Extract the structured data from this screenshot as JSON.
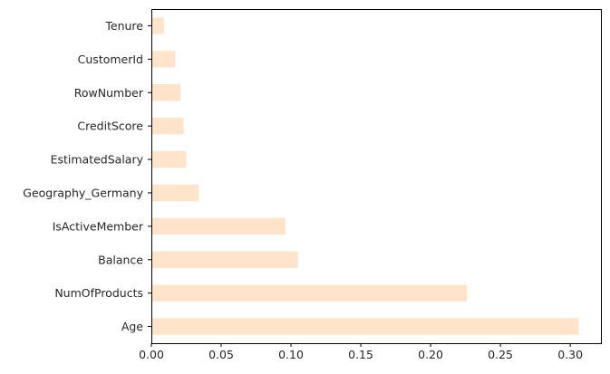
{
  "chart_data": {
    "type": "bar",
    "orientation": "horizontal",
    "categories": [
      "Tenure",
      "CustomerId",
      "RowNumber",
      "CreditScore",
      "EstimatedSalary",
      "Geography_Germany",
      "IsActiveMember",
      "Balance",
      "NumOfProducts",
      "Age"
    ],
    "values": [
      0.009,
      0.017,
      0.021,
      0.023,
      0.025,
      0.034,
      0.096,
      0.105,
      0.226,
      0.306
    ],
    "xlim": [
      0,
      0.322
    ],
    "xticks": [
      0.0,
      0.05,
      0.1,
      0.15,
      0.2,
      0.25,
      0.3
    ],
    "xtick_labels": [
      "0.00",
      "0.05",
      "0.10",
      "0.15",
      "0.20",
      "0.25",
      "0.30"
    ],
    "title": "",
    "xlabel": "",
    "ylabel": "",
    "grid": false,
    "bar_color": "#FFE4CA",
    "axis_color": "#000000"
  }
}
